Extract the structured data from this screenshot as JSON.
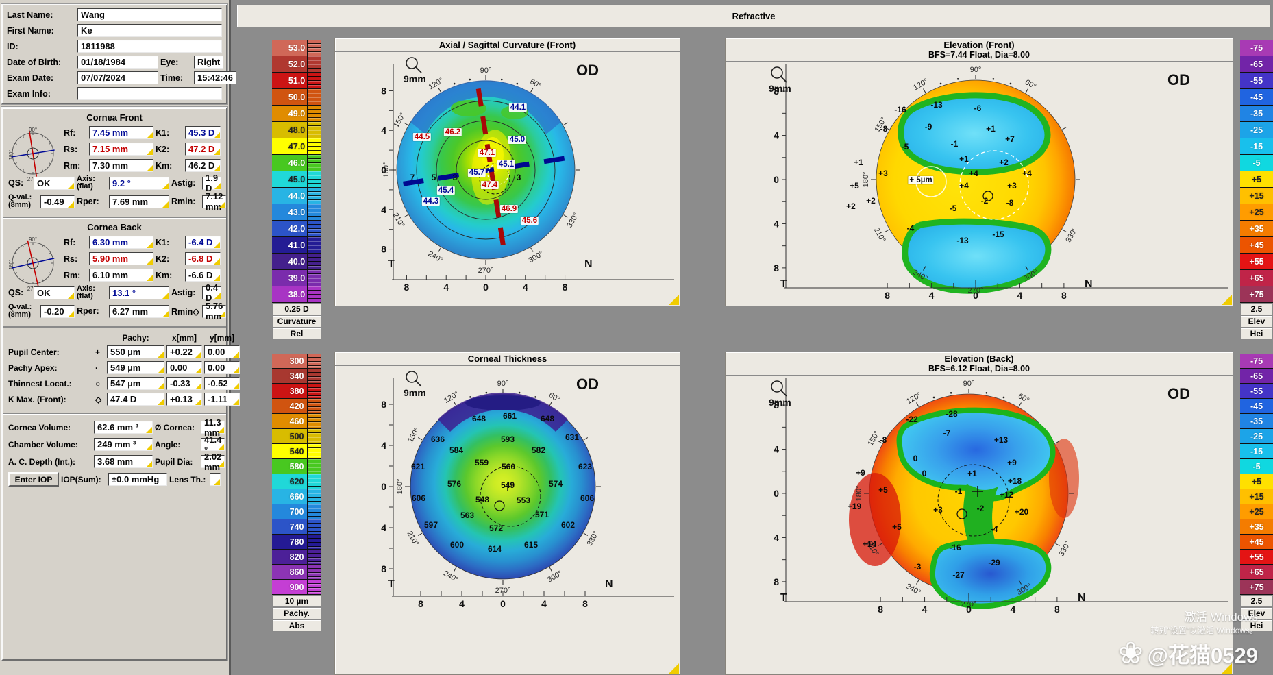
{
  "titlebar": {
    "title": "Refractive"
  },
  "patient": {
    "last_name_label": "Last Name:",
    "last_name": "Wang",
    "first_name_label": "First Name:",
    "first_name": "Ke",
    "id_label": "ID:",
    "id": "1811988",
    "dob_label": "Date of Birth:",
    "dob": "01/18/1984",
    "eye_label": "Eye:",
    "eye": "Right",
    "exam_date_label": "Exam Date:",
    "exam_date": "07/07/2024",
    "time_label": "Time:",
    "time": "15:42:46",
    "exam_info_label": "Exam Info:",
    "exam_info": ""
  },
  "cornea_front": {
    "title": "Cornea Front",
    "rows": [
      {
        "l1": "Rf:",
        "v1": "7.45 mm",
        "c1": "b",
        "n1": "rf",
        "l2": "K1:",
        "v2": "45.3 D",
        "c2": "b",
        "n2": "k1"
      },
      {
        "l1": "Rs:",
        "v1": "7.15 mm",
        "c1": "r",
        "n1": "rs",
        "l2": "K2:",
        "v2": "47.2 D",
        "c2": "r",
        "n2": "k2"
      },
      {
        "l1": "Rm:",
        "v1": "7.30 mm",
        "c1": "k",
        "n1": "rm",
        "l2": "Km:",
        "v2": "46.2 D",
        "c2": "k",
        "n2": "km"
      }
    ],
    "qs_label": "QS:",
    "qs": "OK",
    "axis_label1": "Axis:",
    "axis_label2": "(flat)",
    "axis": "9.2 °",
    "astig_label": "Astig:",
    "astig": "1.9 D",
    "qval_label1": "Q-val.:",
    "qval_label2": "(8mm)",
    "qval": "-0.49",
    "rper_label": "Rper:",
    "rper": "7.69 mm",
    "rmin_label": "Rmin:",
    "rmin": "7.12 mm"
  },
  "cornea_back": {
    "title": "Cornea Back",
    "rows": [
      {
        "l1": "Rf:",
        "v1": "6.30 mm",
        "c1": "b",
        "n1": "rf",
        "l2": "K1:",
        "v2": "-6.4 D",
        "c2": "b",
        "n2": "k1"
      },
      {
        "l1": "Rs:",
        "v1": "5.90 mm",
        "c1": "r",
        "n1": "rs",
        "l2": "K2:",
        "v2": "-6.8 D",
        "c2": "r",
        "n2": "k2"
      },
      {
        "l1": "Rm:",
        "v1": "6.10 mm",
        "c1": "k",
        "n1": "rm",
        "l2": "Km:",
        "v2": "-6.6 D",
        "c2": "k",
        "n2": "km"
      }
    ],
    "qs_label": "QS:",
    "qs": "OK",
    "axis_label1": "Axis:",
    "axis_label2": "(flat)",
    "axis": "13.1 °",
    "astig_label": "Astig:",
    "astig": "0.4 D",
    "qval_label1": "Q-val.:",
    "qval_label2": "(8mm)",
    "qval": "-0.20",
    "rper_label": "Rper:",
    "rper": "6.27 mm",
    "rmin_label": "Rmin◇",
    "rmin": "5.76 mm"
  },
  "pachy": {
    "headers": {
      "pachy": "Pachy:",
      "x": "x[mm]",
      "y": "y[mm]"
    },
    "rows": [
      {
        "label": "Pupil Center:",
        "marker": "+",
        "pachy": "550 µm",
        "x": "+0.22",
        "y": "0.00"
      },
      {
        "label": "Pachy Apex:",
        "marker": "·",
        "pachy": "549 µm",
        "x": "0.00",
        "y": "0.00"
      },
      {
        "label": "Thinnest Locat.:",
        "marker": "○",
        "pachy": "547 µm",
        "x": "-0.33",
        "y": "-0.52"
      },
      {
        "label": "K Max. (Front):",
        "marker": "◇",
        "pachy": "47.4 D",
        "x": "+0.13",
        "y": "-1.11"
      }
    ]
  },
  "globals": {
    "rows": [
      {
        "l1": "Cornea Volume:",
        "v1": "62.6 mm ³",
        "n1": "cornea-volume",
        "l2": "Ø Cornea:",
        "v2": "11.3 mm",
        "n2": "cornea-diameter"
      },
      {
        "l1": "Chamber Volume:",
        "v1": "249 mm ³",
        "n1": "chamber-volume",
        "l2": "Angle:",
        "v2": "41.4 °",
        "n2": "angle"
      },
      {
        "l1": "A. C. Depth (Int.):",
        "v1": "3.68 mm",
        "n1": "ac-depth",
        "l2": "Pupil Dia:",
        "v2": "2.02 mm",
        "n2": "pupil-dia"
      }
    ],
    "enter_iop": "Enter IOP",
    "iop_label": "IOP(Sum):",
    "iop": "±0.0 mmHg",
    "lens_label": "Lens Th.:",
    "lens": ""
  },
  "scales": {
    "curvature": {
      "values": [
        "53.0",
        "52.0",
        "51.0",
        "50.0",
        "49.0",
        "48.0",
        "47.0",
        "46.0",
        "45.0",
        "44.0",
        "43.0",
        "42.0",
        "41.0",
        "40.0",
        "39.0",
        "38.0"
      ],
      "colors": [
        "#d06858",
        "#b03830",
        "#cc1414",
        "#d05410",
        "#e08c00",
        "#d8bc00",
        "#ffff00",
        "#48c820",
        "#20d8d8",
        "#28b4e4",
        "#2488dc",
        "#2c54c8",
        "#241c94",
        "#44208c",
        "#7a2cac",
        "#a834c4"
      ],
      "footer": [
        "0.25 D",
        "Curvature",
        "Rel"
      ]
    },
    "pachymetry": {
      "values": [
        "300",
        "340",
        "380",
        "420",
        "460",
        "500",
        "540",
        "580",
        "620",
        "660",
        "700",
        "740",
        "780",
        "820",
        "860",
        "900"
      ],
      "colors": [
        "#d06858",
        "#a83830",
        "#cc1414",
        "#d05410",
        "#e08c00",
        "#d8bc00",
        "#ffff00",
        "#48c820",
        "#20d8d8",
        "#28b4e4",
        "#2488dc",
        "#2c54c8",
        "#241a94",
        "#4c2098",
        "#8c34b4",
        "#c43ed4"
      ],
      "footer": [
        "10 µm",
        "Pachy.",
        "Abs"
      ]
    },
    "elevation": {
      "values": [
        "-75",
        "-65",
        "-55",
        "-45",
        "-35",
        "-25",
        "-15",
        "-5",
        "+5",
        "+15",
        "+25",
        "+35",
        "+45",
        "+55",
        "+65",
        "+75"
      ],
      "colors": [
        "#a83ab4",
        "#7224a8",
        "#4434c8",
        "#2064e0",
        "#2084e4",
        "#1ca4e8",
        "#18c0ec",
        "#10d8e0",
        "#ffe000",
        "#ffc000",
        "#ff9c00",
        "#f47c00",
        "#ec5400",
        "#e41414",
        "#c02448",
        "#9c3458"
      ],
      "footer": [
        "2.5",
        "Elev",
        "Hei"
      ]
    }
  },
  "axes": {
    "v": [
      "8",
      "4",
      "0",
      "4",
      "8"
    ],
    "h": [
      "8",
      "4",
      "0",
      "4",
      "8"
    ],
    "degrees": [
      {
        "a": 90,
        "t": "90°"
      },
      {
        "a": 60,
        "t": "60°"
      },
      {
        "a": 120,
        "t": "120°"
      },
      {
        "a": 150,
        "t": "150°"
      },
      {
        "a": 180,
        "t": "180°"
      },
      {
        "a": 210,
        "t": "210°"
      },
      {
        "a": 240,
        "t": "240°"
      },
      {
        "a": 270,
        "t": "270°"
      },
      {
        "a": 300,
        "t": "300°"
      },
      {
        "a": 330,
        "t": "330°"
      }
    ],
    "t": "T",
    "n": "N",
    "od": "OD",
    "zoom": "9mm"
  },
  "maps": {
    "axial": {
      "title": "Axial / Sagittal Curvature (Front)",
      "labels": [
        [
          "44.5",
          127,
          124,
          "r"
        ],
        [
          "46.2",
          172,
          117,
          "r"
        ],
        [
          "44.1",
          267,
          81,
          "b"
        ],
        [
          "45.0",
          266,
          128,
          "b"
        ],
        [
          "47.1",
          222,
          147,
          "r"
        ],
        [
          "45.7",
          207,
          176,
          "b"
        ],
        [
          "45.1",
          250,
          164,
          "b"
        ],
        [
          "47.4",
          226,
          194,
          "r"
        ],
        [
          "45.4",
          162,
          202,
          "b"
        ],
        [
          "44.3",
          140,
          218,
          "b"
        ],
        [
          "46.9",
          254,
          229,
          "r"
        ],
        [
          "45.6",
          284,
          246,
          "r"
        ],
        [
          "7",
          113,
          183,
          "k"
        ],
        [
          "5",
          144,
          183,
          "k"
        ],
        [
          "3",
          175,
          183,
          "k"
        ],
        [
          "3",
          268,
          183,
          "k"
        ]
      ]
    },
    "elev_front": {
      "title": "Elevation (Front)",
      "subtitle": "BFS=7.44 Float, Dia=8.00",
      "labels": [
        [
          "-16",
          255,
          70,
          "k"
        ],
        [
          "-13",
          308,
          63,
          "k"
        ],
        [
          "-6",
          368,
          68,
          "k"
        ],
        [
          "-8",
          231,
          98,
          "k"
        ],
        [
          "-9",
          296,
          95,
          "k"
        ],
        [
          "+1",
          387,
          98,
          "k"
        ],
        [
          "-5",
          262,
          124,
          "k"
        ],
        [
          "-1",
          334,
          120,
          "k"
        ],
        [
          "+7",
          415,
          113,
          "k"
        ],
        [
          "+1",
          194,
          147,
          "k"
        ],
        [
          "+1",
          348,
          142,
          "k"
        ],
        [
          "+2",
          406,
          147,
          "k"
        ],
        [
          "+3",
          230,
          163,
          "k"
        ],
        [
          "+4",
          362,
          163,
          "k"
        ],
        [
          "+4",
          440,
          163,
          "k"
        ],
        [
          "+ 5µm",
          285,
          173,
          "k",
          "chip"
        ],
        [
          "+5",
          188,
          181,
          "k"
        ],
        [
          "+4",
          348,
          181,
          "k"
        ],
        [
          "+3",
          418,
          181,
          "k"
        ],
        [
          "+2",
          212,
          203,
          "k"
        ],
        [
          "-2",
          378,
          203,
          "k"
        ],
        [
          "+2",
          183,
          211,
          "k"
        ],
        [
          "-5",
          332,
          214,
          "k"
        ],
        [
          "-8",
          415,
          206,
          "k"
        ],
        [
          "-4",
          270,
          243,
          "k"
        ],
        [
          "-13",
          346,
          261,
          "k"
        ],
        [
          "-15",
          398,
          252,
          "k"
        ]
      ]
    },
    "thickness": {
      "title": "Corneal Thickness",
      "labels": [
        [
          "648",
          210,
          77,
          "k"
        ],
        [
          "661",
          255,
          73,
          "k"
        ],
        [
          "648",
          310,
          77,
          "k"
        ],
        [
          "636",
          150,
          107,
          "k"
        ],
        [
          "593",
          252,
          107,
          "k"
        ],
        [
          "631",
          346,
          104,
          "k"
        ],
        [
          "584",
          177,
          123,
          "k"
        ],
        [
          "582",
          297,
          123,
          "k"
        ],
        [
          "621",
          121,
          147,
          "k"
        ],
        [
          "559",
          214,
          141,
          "k"
        ],
        [
          "560",
          253,
          147,
          "k"
        ],
        [
          "623",
          365,
          147,
          "k"
        ],
        [
          "576",
          174,
          172,
          "k"
        ],
        [
          "549",
          252,
          174,
          "k"
        ],
        [
          "574",
          322,
          172,
          "k"
        ],
        [
          "606",
          122,
          193,
          "k"
        ],
        [
          "548",
          215,
          195,
          "k"
        ],
        [
          "553",
          275,
          196,
          "k"
        ],
        [
          "606",
          368,
          193,
          "k"
        ],
        [
          "563",
          193,
          218,
          "k"
        ],
        [
          "571",
          302,
          217,
          "k"
        ],
        [
          "597",
          140,
          232,
          "k"
        ],
        [
          "572",
          235,
          237,
          "k"
        ],
        [
          "602",
          340,
          232,
          "k"
        ],
        [
          "600",
          178,
          261,
          "k"
        ],
        [
          "614",
          233,
          267,
          "k"
        ],
        [
          "615",
          286,
          261,
          "k"
        ]
      ]
    },
    "elev_back": {
      "title": "Elevation (Back)",
      "subtitle": "BFS=6.12 Float, Dia=8.00",
      "labels": [
        [
          "-22",
          272,
          64,
          "k"
        ],
        [
          "-28",
          330,
          56,
          "k"
        ],
        [
          "-8",
          230,
          94,
          "k"
        ],
        [
          "-7",
          323,
          84,
          "k"
        ],
        [
          "+13",
          402,
          94,
          "k"
        ],
        [
          "0",
          277,
          121,
          "k"
        ],
        [
          "+9",
          418,
          127,
          "k"
        ],
        [
          "0",
          290,
          143,
          "k"
        ],
        [
          "+1",
          360,
          143,
          "k"
        ],
        [
          "+9",
          197,
          142,
          "k"
        ],
        [
          "+18",
          422,
          154,
          "k"
        ],
        [
          "+5",
          230,
          167,
          "k"
        ],
        [
          "-1",
          340,
          169,
          "k"
        ],
        [
          "+12",
          410,
          174,
          "k"
        ],
        [
          "+19",
          188,
          191,
          "k"
        ],
        [
          "+3",
          310,
          196,
          "k"
        ],
        [
          "-2",
          372,
          194,
          "k"
        ],
        [
          "+20",
          432,
          199,
          "k"
        ],
        [
          "+5",
          250,
          221,
          "k"
        ],
        [
          "-4",
          392,
          224,
          "k"
        ],
        [
          "+14",
          210,
          246,
          "k"
        ],
        [
          "-16",
          335,
          251,
          "k"
        ],
        [
          "-29",
          392,
          273,
          "k"
        ],
        [
          "-3",
          280,
          279,
          "k"
        ],
        [
          "-27",
          340,
          291,
          "k"
        ]
      ]
    }
  },
  "watermark": {
    "line1": "激活 Windows",
    "line2": "转到\"设置\"以激活 Windows。",
    "handle": "@花猫0529",
    "flower_icon": "❀"
  }
}
